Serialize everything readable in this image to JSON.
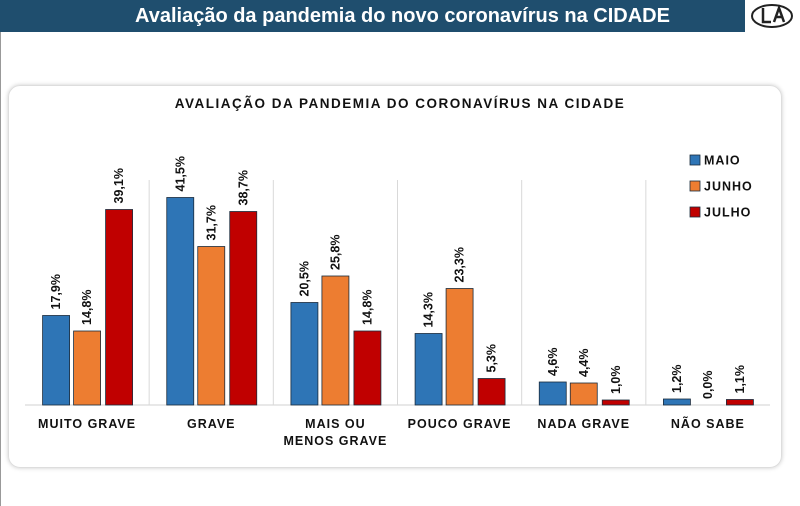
{
  "header": {
    "title": "Avaliação da pandemia do novo coronavírus na CIDADE"
  },
  "chart_data": {
    "type": "bar",
    "title": "AVALIAÇÃO DA PANDEMIA  DO CORONAVÍRUS  NA CIDADE",
    "categories": [
      "MUITO GRAVE",
      "GRAVE",
      "MAIS OU MENOS GRAVE",
      "POUCO GRAVE",
      "NADA GRAVE",
      "NÃO SABE"
    ],
    "series": [
      {
        "name": "MAIO",
        "color": "#2e75b6",
        "values": [
          17.9,
          41.5,
          20.5,
          14.3,
          4.6,
          1.2
        ],
        "value_labels": [
          "17,9%",
          "41,5%",
          "20,5%",
          "14,3%",
          "4,6%",
          "1,2%"
        ]
      },
      {
        "name": "JUNHO",
        "color": "#ed7d31",
        "values": [
          14.8,
          31.7,
          25.8,
          23.3,
          4.4,
          0.0
        ],
        "value_labels": [
          "14,8%",
          "31,7%",
          "25,8%",
          "23,3%",
          "4,4%",
          "0,0%"
        ]
      },
      {
        "name": "JULHO",
        "color": "#c00000",
        "values": [
          39.1,
          38.7,
          14.8,
          5.3,
          1.0,
          1.1
        ],
        "value_labels": [
          "39,1%",
          "38,7%",
          "14,8%",
          "5,3%",
          "1,0%",
          "1,1%"
        ]
      }
    ],
    "legend": "upper right"
  }
}
